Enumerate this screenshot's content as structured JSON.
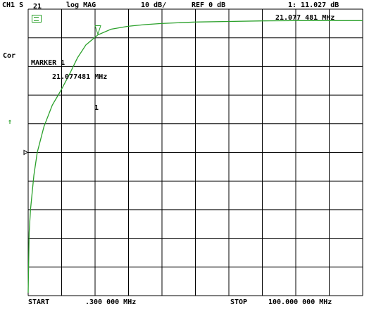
{
  "header": {
    "channel": "CH1 S",
    "param": "21",
    "format": "log MAG",
    "scale": "10 dB/",
    "ref": "REF 0 dB",
    "marker_readout_value": "1: 11.027 dB",
    "marker_readout_freq": "21.077 481 MHz"
  },
  "side": {
    "cor": "Cor",
    "ref_arrow": "↑"
  },
  "marker_box": {
    "title": "MARKER 1",
    "freq": "21.077481 MHz",
    "label": "1"
  },
  "footer": {
    "start_label": "START",
    "start_value": ".300 000 MHz",
    "stop_label": "STOP",
    "stop_value": "100.000 000 MHz"
  },
  "colors": {
    "trace": "#2aa02a",
    "grid": "#000000",
    "background": "#ffffff"
  },
  "chart_data": {
    "type": "line",
    "x_unit": "MHz",
    "y_unit": "dB",
    "xlim": [
      0.3,
      100
    ],
    "ylim": [
      -80,
      20
    ],
    "grid": true,
    "series": [
      {
        "x": [
          0.3,
          0.6,
          1.0,
          2.0,
          3.0,
          5.0,
          7.5,
          10.0,
          12.5,
          15.0,
          17.5,
          21.077481,
          25.0,
          30.0,
          35.0,
          40.0,
          50.0,
          60.0,
          70.0,
          80.0,
          90.0,
          100.0
        ],
        "y": [
          -79,
          -58,
          -50,
          -38,
          -30,
          -21,
          -13.5,
          -8.5,
          -3,
          3,
          7.5,
          11.027,
          13.0,
          14.0,
          14.6,
          15.0,
          15.5,
          15.7,
          15.9,
          16.0,
          16.0,
          16.0
        ]
      }
    ],
    "marker": {
      "x": 21.077481,
      "y": 11.027
    }
  }
}
